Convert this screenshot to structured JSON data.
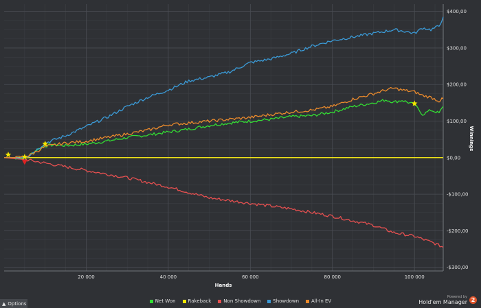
{
  "chart_data": {
    "type": "line",
    "xlabel": "Hands",
    "ylabel": "Winnings",
    "xlim": [
      0,
      107000
    ],
    "ylim": [
      -310,
      420
    ],
    "x_ticks": [
      20000,
      40000,
      60000,
      80000,
      100000
    ],
    "x_tick_labels": [
      "20 000",
      "40 000",
      "60 000",
      "80 000",
      "100 000"
    ],
    "y_ticks": [
      400,
      300,
      200,
      100,
      0,
      -100,
      -200,
      -300
    ],
    "y_tick_labels": [
      "$400,00",
      "$300,00",
      "$200,00",
      "$100,00",
      "$0,00",
      "-$100,00",
      "-$200,00",
      "-$300,00"
    ],
    "grid": true,
    "legend_position": "bottom",
    "series": [
      {
        "name": "Net Won",
        "color": "#33dd33",
        "x": [
          0,
          2000,
          4000,
          6000,
          8000,
          10000,
          12000,
          15000,
          20000,
          25000,
          30000,
          35000,
          40000,
          45000,
          50000,
          55000,
          60000,
          65000,
          70000,
          75000,
          80000,
          85000,
          90000,
          93000,
          95000,
          97000,
          100000,
          102000,
          104000,
          106000,
          107000
        ],
        "y": [
          0,
          0,
          -2,
          5,
          22,
          32,
          35,
          33,
          37,
          45,
          55,
          62,
          70,
          78,
          88,
          95,
          100,
          105,
          112,
          115,
          125,
          140,
          150,
          158,
          152,
          157,
          145,
          118,
          130,
          122,
          140
        ]
      },
      {
        "name": "Rakeback",
        "color": "#f2e600",
        "x": [
          0,
          107000
        ],
        "y": [
          0,
          0
        ]
      },
      {
        "name": "Non Showdown",
        "color": "#e65050",
        "x": [
          0,
          5000,
          10000,
          20000,
          30000,
          40000,
          50000,
          60000,
          70000,
          80000,
          90000,
          95000,
          100000,
          105000,
          107000
        ],
        "y": [
          0,
          -5,
          -15,
          -35,
          -55,
          -80,
          -110,
          -125,
          -140,
          -160,
          -185,
          -205,
          -215,
          -235,
          -245
        ]
      },
      {
        "name": "Showdown",
        "color": "#3b9ad6",
        "x": [
          0,
          3000,
          6000,
          10000,
          15000,
          20000,
          25000,
          30000,
          35000,
          40000,
          45000,
          50000,
          55000,
          60000,
          65000,
          70000,
          75000,
          80000,
          85000,
          90000,
          95000,
          98000,
          100000,
          102000,
          104000,
          106000,
          107000
        ],
        "y": [
          0,
          0,
          5,
          40,
          60,
          85,
          110,
          140,
          165,
          185,
          210,
          220,
          235,
          260,
          270,
          285,
          305,
          320,
          330,
          340,
          350,
          345,
          340,
          355,
          350,
          360,
          385
        ]
      },
      {
        "name": "All-In EV",
        "color": "#ea8a2c",
        "x": [
          0,
          3000,
          6000,
          10000,
          15000,
          20000,
          25000,
          30000,
          35000,
          40000,
          45000,
          50000,
          55000,
          60000,
          65000,
          70000,
          75000,
          80000,
          85000,
          90000,
          93000,
          95000,
          97000,
          100000,
          102000,
          104000,
          106000,
          107000
        ],
        "y": [
          0,
          0,
          5,
          30,
          40,
          45,
          55,
          65,
          75,
          90,
          95,
          100,
          105,
          110,
          118,
          125,
          130,
          140,
          160,
          175,
          185,
          190,
          185,
          180,
          170,
          165,
          155,
          162
        ]
      }
    ],
    "markers": [
      {
        "x": 1000,
        "y": 8,
        "color": "#f2e600",
        "shape": "star"
      },
      {
        "x": 5000,
        "y": 2,
        "color": "#f2e600",
        "shape": "star"
      },
      {
        "x": 5000,
        "y": -12,
        "color": "#dd2222",
        "shape": "triangle-down"
      },
      {
        "x": 10000,
        "y": 38,
        "color": "#f2e600",
        "shape": "star"
      },
      {
        "x": 100000,
        "y": 148,
        "color": "#f2e600",
        "shape": "star"
      }
    ]
  },
  "ui": {
    "options_label": "Options",
    "brand_small": "Powered by",
    "brand_name": "Hold'em Manager",
    "brand_logo": "2"
  }
}
